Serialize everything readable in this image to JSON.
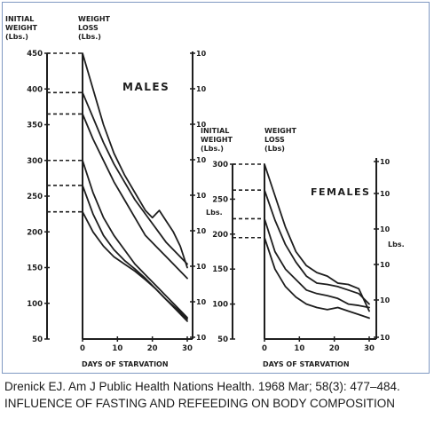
{
  "caption": {
    "line1": "Drenick EJ. Am J Public Health Nations Health. 1968 Mar; 58(3): 477–484.",
    "line2": "INFLUENCE OF FASTING AND REFEEDING ON BODY COMPOSITION"
  },
  "chart_data": [
    {
      "type": "line",
      "title": "MALES",
      "xlabel": "DAYS OF STARVATION",
      "ylabel": "INITIAL WEIGHT (Lbs.)",
      "y2label": "WEIGHT LOSS (Lbs.)",
      "y2_unit": "Lbs.",
      "xlim": [
        0,
        30
      ],
      "ylim": [
        50,
        450
      ],
      "x_ticks": [
        0,
        10,
        20,
        30
      ],
      "y_ticks": [
        50,
        100,
        150,
        200,
        250,
        300,
        350,
        400,
        450
      ],
      "right_tick_label": "10",
      "series": [
        {
          "initial_weight": 450,
          "x": [
            0,
            3,
            6,
            9,
            12,
            15,
            18,
            20,
            21,
            22,
            24,
            26,
            28,
            30
          ],
          "y": [
            450,
            400,
            350,
            310,
            280,
            255,
            230,
            220,
            225,
            230,
            215,
            200,
            180,
            150
          ]
        },
        {
          "initial_weight": 395,
          "x": [
            0,
            3,
            6,
            9,
            12,
            15,
            18,
            21,
            24,
            27,
            30
          ],
          "y": [
            395,
            360,
            325,
            295,
            270,
            245,
            225,
            205,
            185,
            170,
            155
          ]
        },
        {
          "initial_weight": 365,
          "x": [
            0,
            3,
            6,
            9,
            12,
            15,
            18,
            21,
            24,
            27,
            30
          ],
          "y": [
            365,
            330,
            300,
            270,
            245,
            220,
            195,
            180,
            165,
            150,
            135
          ]
        },
        {
          "initial_weight": 300,
          "x": [
            0,
            3,
            6,
            9,
            12,
            15,
            18,
            21,
            24,
            27,
            30
          ],
          "y": [
            300,
            255,
            220,
            195,
            175,
            155,
            140,
            125,
            110,
            95,
            80
          ]
        },
        {
          "initial_weight": 265,
          "x": [
            0,
            3,
            6,
            9,
            12,
            15,
            18,
            21,
            24,
            27,
            30
          ],
          "y": [
            265,
            225,
            195,
            175,
            160,
            148,
            135,
            120,
            105,
            92,
            78
          ]
        },
        {
          "initial_weight": 228,
          "x": [
            0,
            3,
            6,
            9,
            12,
            15,
            18,
            21,
            24,
            27,
            30
          ],
          "y": [
            228,
            200,
            180,
            165,
            155,
            145,
            133,
            120,
            105,
            90,
            75
          ]
        }
      ]
    },
    {
      "type": "line",
      "title": "FEMALES",
      "xlabel": "DAYS OF STARVATION",
      "ylabel": "INITIAL WEIGHT (Lbs.)",
      "y2label": "WEIGHT LOSS (Lbs)",
      "y2_unit": "Lbs.",
      "xlim": [
        0,
        30
      ],
      "ylim": [
        50,
        300
      ],
      "x_ticks": [
        0,
        10,
        20,
        30
      ],
      "y_ticks": [
        50,
        100,
        150,
        200,
        250,
        300
      ],
      "right_tick_label": "10",
      "series": [
        {
          "initial_weight": 300,
          "x": [
            0,
            3,
            6,
            9,
            12,
            15,
            18,
            21,
            24,
            27,
            30
          ],
          "y": [
            300,
            255,
            210,
            175,
            155,
            145,
            140,
            130,
            128,
            122,
            90
          ]
        },
        {
          "initial_weight": 263,
          "x": [
            0,
            3,
            6,
            9,
            12,
            15,
            18,
            21,
            24,
            27,
            30
          ],
          "y": [
            263,
            220,
            185,
            160,
            140,
            130,
            128,
            125,
            120,
            115,
            100
          ]
        },
        {
          "initial_weight": 222,
          "x": [
            0,
            3,
            6,
            9,
            12,
            15,
            18,
            21,
            24,
            27,
            30
          ],
          "y": [
            222,
            175,
            150,
            135,
            120,
            115,
            112,
            108,
            100,
            98,
            95
          ]
        },
        {
          "initial_weight": 195,
          "x": [
            0,
            3,
            6,
            9,
            12,
            15,
            18,
            21,
            24,
            27,
            30
          ],
          "y": [
            195,
            150,
            125,
            110,
            100,
            95,
            92,
            95,
            90,
            85,
            80
          ]
        }
      ]
    }
  ],
  "labels": {
    "left_axis_line1": "INITIAL",
    "left_axis_line2": "WEIGHT",
    "left_axis_line3": "(Lbs.)",
    "loss_axis_line1": "WEIGHT",
    "loss_axis_line2": "LOSS",
    "males_loss_line3": "(Lbs.)",
    "females_loss_line3": "(Lbs)"
  }
}
